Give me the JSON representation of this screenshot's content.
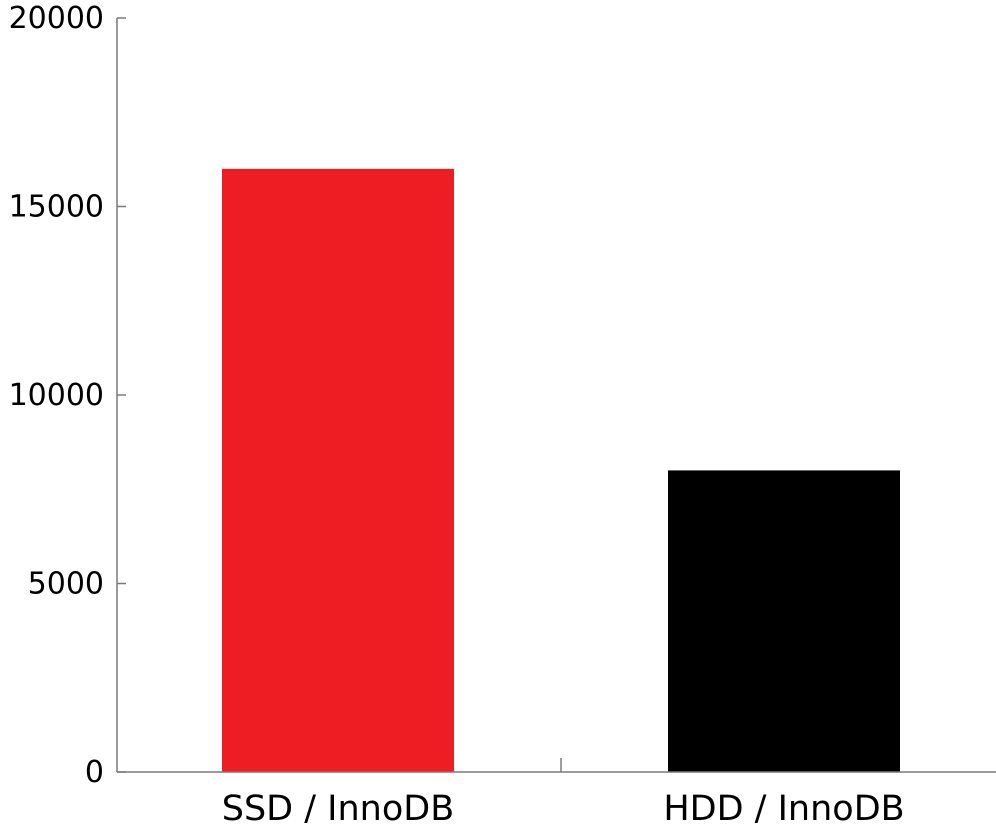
{
  "chart_data": {
    "type": "bar",
    "title": "",
    "xlabel": "",
    "ylabel": "",
    "categories": [
      "SSD / InnoDB",
      "HDD / InnoDB"
    ],
    "values": [
      16000,
      8000
    ],
    "colors": [
      "#ee1c23",
      "#000000"
    ],
    "ylim": [
      0,
      20000
    ],
    "yticks": [
      0,
      5000,
      10000,
      15000,
      20000
    ],
    "ytick_labels": [
      "0",
      "5000",
      "10000",
      "15000",
      "20000"
    ],
    "grid": false,
    "legend": false
  }
}
